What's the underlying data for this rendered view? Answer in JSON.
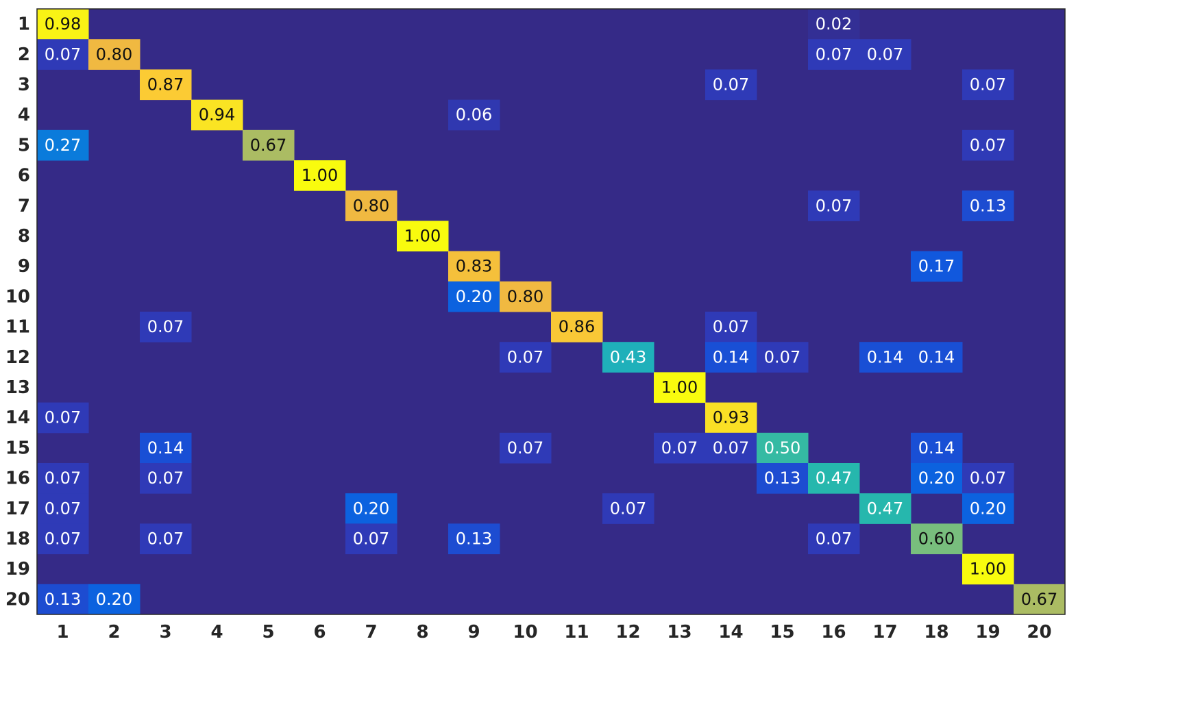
{
  "chart_data": {
    "type": "heatmap",
    "title": "",
    "xlabel": "",
    "ylabel": "",
    "x_categories": [
      "1",
      "2",
      "3",
      "4",
      "5",
      "6",
      "7",
      "8",
      "9",
      "10",
      "11",
      "12",
      "13",
      "14",
      "15",
      "16",
      "17",
      "18",
      "19",
      "20"
    ],
    "y_categories": [
      "1",
      "2",
      "3",
      "4",
      "5",
      "6",
      "7",
      "8",
      "9",
      "10",
      "11",
      "12",
      "13",
      "14",
      "15",
      "16",
      "17",
      "18",
      "19",
      "20"
    ],
    "colormap": "parula",
    "value_range": [
      0,
      1
    ],
    "cells": [
      {
        "row": 1,
        "col": 1,
        "value": "0.98"
      },
      {
        "row": 1,
        "col": 16,
        "value": "0.02"
      },
      {
        "row": 2,
        "col": 1,
        "value": "0.07"
      },
      {
        "row": 2,
        "col": 2,
        "value": "0.80"
      },
      {
        "row": 2,
        "col": 16,
        "value": "0.07"
      },
      {
        "row": 2,
        "col": 17,
        "value": "0.07"
      },
      {
        "row": 3,
        "col": 3,
        "value": "0.87"
      },
      {
        "row": 3,
        "col": 14,
        "value": "0.07"
      },
      {
        "row": 3,
        "col": 19,
        "value": "0.07"
      },
      {
        "row": 4,
        "col": 4,
        "value": "0.94"
      },
      {
        "row": 4,
        "col": 9,
        "value": "0.06"
      },
      {
        "row": 5,
        "col": 1,
        "value": "0.27"
      },
      {
        "row": 5,
        "col": 5,
        "value": "0.67"
      },
      {
        "row": 5,
        "col": 19,
        "value": "0.07"
      },
      {
        "row": 6,
        "col": 6,
        "value": "1.00"
      },
      {
        "row": 7,
        "col": 7,
        "value": "0.80"
      },
      {
        "row": 7,
        "col": 16,
        "value": "0.07"
      },
      {
        "row": 7,
        "col": 19,
        "value": "0.13"
      },
      {
        "row": 8,
        "col": 8,
        "value": "1.00"
      },
      {
        "row": 9,
        "col": 9,
        "value": "0.83"
      },
      {
        "row": 9,
        "col": 18,
        "value": "0.17"
      },
      {
        "row": 10,
        "col": 9,
        "value": "0.20"
      },
      {
        "row": 10,
        "col": 10,
        "value": "0.80"
      },
      {
        "row": 11,
        "col": 3,
        "value": "0.07"
      },
      {
        "row": 11,
        "col": 11,
        "value": "0.86"
      },
      {
        "row": 11,
        "col": 14,
        "value": "0.07"
      },
      {
        "row": 12,
        "col": 10,
        "value": "0.07"
      },
      {
        "row": 12,
        "col": 12,
        "value": "0.43"
      },
      {
        "row": 12,
        "col": 14,
        "value": "0.14"
      },
      {
        "row": 12,
        "col": 15,
        "value": "0.07"
      },
      {
        "row": 12,
        "col": 17,
        "value": "0.14"
      },
      {
        "row": 12,
        "col": 18,
        "value": "0.14"
      },
      {
        "row": 13,
        "col": 13,
        "value": "1.00"
      },
      {
        "row": 14,
        "col": 1,
        "value": "0.07"
      },
      {
        "row": 14,
        "col": 14,
        "value": "0.93"
      },
      {
        "row": 15,
        "col": 3,
        "value": "0.14"
      },
      {
        "row": 15,
        "col": 10,
        "value": "0.07"
      },
      {
        "row": 15,
        "col": 13,
        "value": "0.07"
      },
      {
        "row": 15,
        "col": 14,
        "value": "0.07"
      },
      {
        "row": 15,
        "col": 15,
        "value": "0.50"
      },
      {
        "row": 15,
        "col": 18,
        "value": "0.14"
      },
      {
        "row": 16,
        "col": 1,
        "value": "0.07"
      },
      {
        "row": 16,
        "col": 3,
        "value": "0.07"
      },
      {
        "row": 16,
        "col": 15,
        "value": "0.13"
      },
      {
        "row": 16,
        "col": 16,
        "value": "0.47"
      },
      {
        "row": 16,
        "col": 18,
        "value": "0.20"
      },
      {
        "row": 16,
        "col": 19,
        "value": "0.07"
      },
      {
        "row": 17,
        "col": 1,
        "value": "0.07"
      },
      {
        "row": 17,
        "col": 7,
        "value": "0.20"
      },
      {
        "row": 17,
        "col": 12,
        "value": "0.07"
      },
      {
        "row": 17,
        "col": 17,
        "value": "0.47"
      },
      {
        "row": 17,
        "col": 19,
        "value": "0.20"
      },
      {
        "row": 18,
        "col": 1,
        "value": "0.07"
      },
      {
        "row": 18,
        "col": 3,
        "value": "0.07"
      },
      {
        "row": 18,
        "col": 7,
        "value": "0.07"
      },
      {
        "row": 18,
        "col": 9,
        "value": "0.13"
      },
      {
        "row": 18,
        "col": 16,
        "value": "0.07"
      },
      {
        "row": 18,
        "col": 18,
        "value": "0.60"
      },
      {
        "row": 19,
        "col": 19,
        "value": "1.00"
      },
      {
        "row": 20,
        "col": 1,
        "value": "0.13"
      },
      {
        "row": 20,
        "col": 2,
        "value": "0.20"
      },
      {
        "row": 20,
        "col": 20,
        "value": "0.67"
      }
    ],
    "colors": {
      "background_cell": "#352a87",
      "text_light": "#ffffff",
      "text_dark": "#111111",
      "tick_text": "#262626",
      "frame": "#262626"
    }
  }
}
